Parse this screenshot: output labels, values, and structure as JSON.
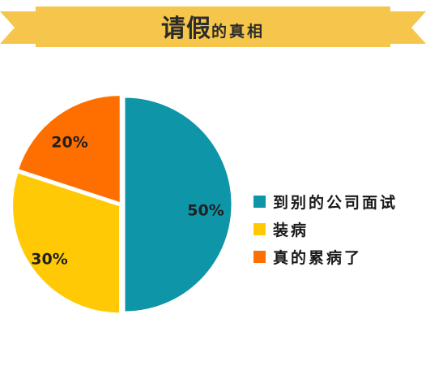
{
  "title": {
    "main": "请假",
    "sub": "的真相"
  },
  "colors": {
    "banner": "#f5c64b",
    "bg": "#ffffff"
  },
  "chart_data": {
    "type": "pie",
    "labels": [
      "到别的公司面试",
      "装病",
      "真的累病了"
    ],
    "values": [
      50,
      30,
      20
    ],
    "data_labels": [
      "50%",
      "30%",
      "20%"
    ],
    "colors": [
      "#0f95a8",
      "#ffca05",
      "#ff6f00"
    ],
    "legend_position": "right"
  }
}
